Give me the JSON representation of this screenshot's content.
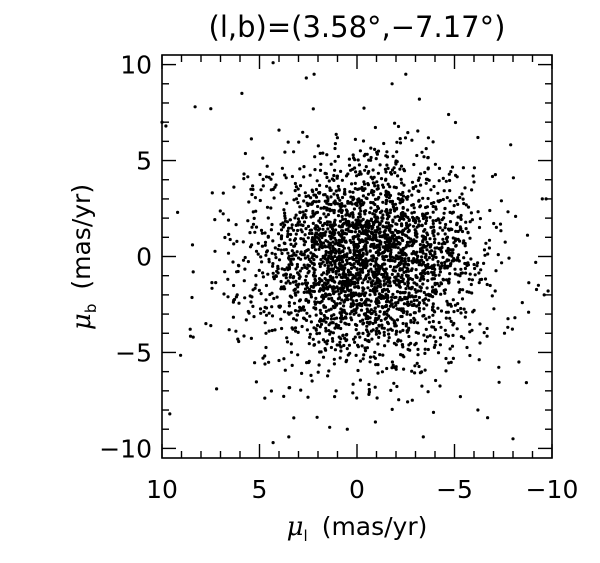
{
  "chart_data": {
    "type": "scatter",
    "title": "(l,b)=(3.58°,−7.17°)",
    "xlabel": {
      "symbol": "μ",
      "subscript": "l",
      "unit": "(mas/yr)"
    },
    "ylabel": {
      "symbol": "μ",
      "subscript": "b",
      "unit": "(mas/yr)"
    },
    "xlim": [
      10,
      -10
    ],
    "ylim": [
      -10.5,
      10.5
    ],
    "x_reversed": true,
    "grid": false,
    "xticks": [
      10,
      5,
      0,
      -5,
      -10
    ],
    "xtick_labels": [
      "10",
      "5",
      "0",
      "−5",
      "−10"
    ],
    "yticks": [
      -10,
      -5,
      0,
      5,
      10
    ],
    "ytick_labels": [
      "−10",
      "−5",
      "0",
      "5",
      "10"
    ],
    "point_color": "#000000",
    "generator": {
      "count": 3000,
      "seed": 7,
      "mean": [
        -0.5,
        -0.2
      ],
      "sigma": [
        2.9,
        2.6
      ]
    },
    "outliers": [
      [
        10,
        7
      ],
      [
        9.8,
        6.8
      ],
      [
        8.3,
        7.8
      ],
      [
        7.5,
        7.7
      ],
      [
        4.3,
        10.1
      ],
      [
        2.6,
        9.3
      ],
      [
        2.2,
        9.5
      ],
      [
        -2.5,
        9.5
      ],
      [
        -3.2,
        8.2
      ],
      [
        -9.5,
        3.0
      ],
      [
        -9.7,
        3.0
      ],
      [
        -9.6,
        -2.0
      ],
      [
        -9.8,
        -1.8
      ],
      [
        9.2,
        2.3
      ],
      [
        8.4,
        -0.8
      ],
      [
        8.4,
        -4.2
      ],
      [
        7.5,
        -3.6
      ],
      [
        7.2,
        -6.9
      ],
      [
        9.6,
        -8.2
      ],
      [
        4.3,
        -9.7
      ],
      [
        3.5,
        -9.4
      ],
      [
        1.4,
        -8.9
      ],
      [
        0.5,
        -9.0
      ],
      [
        -3.4,
        -9.4
      ],
      [
        -5.3,
        -7.3
      ],
      [
        -6.7,
        -8.4
      ],
      [
        -6.2,
        -8.0
      ],
      [
        -8.0,
        -9.5
      ],
      [
        -8.3,
        -5.5
      ],
      [
        -8.8,
        -2.9
      ],
      [
        -9.3,
        -1.5
      ],
      [
        -1.8,
        9.0
      ],
      [
        -4.7,
        7.4
      ],
      [
        -6.2,
        6.2
      ],
      [
        5.9,
        8.5
      ]
    ]
  }
}
